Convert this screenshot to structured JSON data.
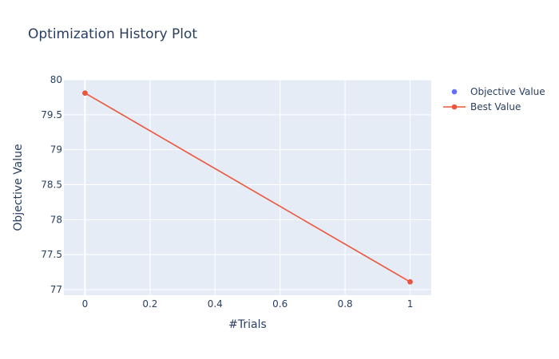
{
  "chart_data": {
    "type": "line",
    "title": "Optimization History Plot",
    "xlabel": "#Trials",
    "ylabel": "Objective Value",
    "xlim": [
      -0.065,
      1.065
    ],
    "ylim": [
      76.92,
      80.0
    ],
    "xticks": [
      0,
      0.2,
      0.4,
      0.6,
      0.8,
      1
    ],
    "xtick_labels": [
      "0",
      "0.2",
      "0.4",
      "0.6",
      "0.8",
      "1"
    ],
    "yticks": [
      77,
      77.5,
      78,
      78.5,
      79,
      79.5,
      80
    ],
    "ytick_labels": [
      "77",
      "77.5",
      "78",
      "78.5",
      "79",
      "79.5",
      "80"
    ],
    "grid": true,
    "legend_position": "top-right, outside plot",
    "series": [
      {
        "name": "Objective Value",
        "mode": "markers",
        "color": "#636efa",
        "x": [
          0,
          1
        ],
        "y": [
          79.81,
          77.11
        ]
      },
      {
        "name": "Best Value",
        "mode": "lines+markers",
        "color": "#ef553b",
        "x": [
          0,
          1
        ],
        "y": [
          79.81,
          77.11
        ]
      }
    ],
    "plot_background": "#e5ecf6",
    "grid_color": "#ffffff"
  }
}
